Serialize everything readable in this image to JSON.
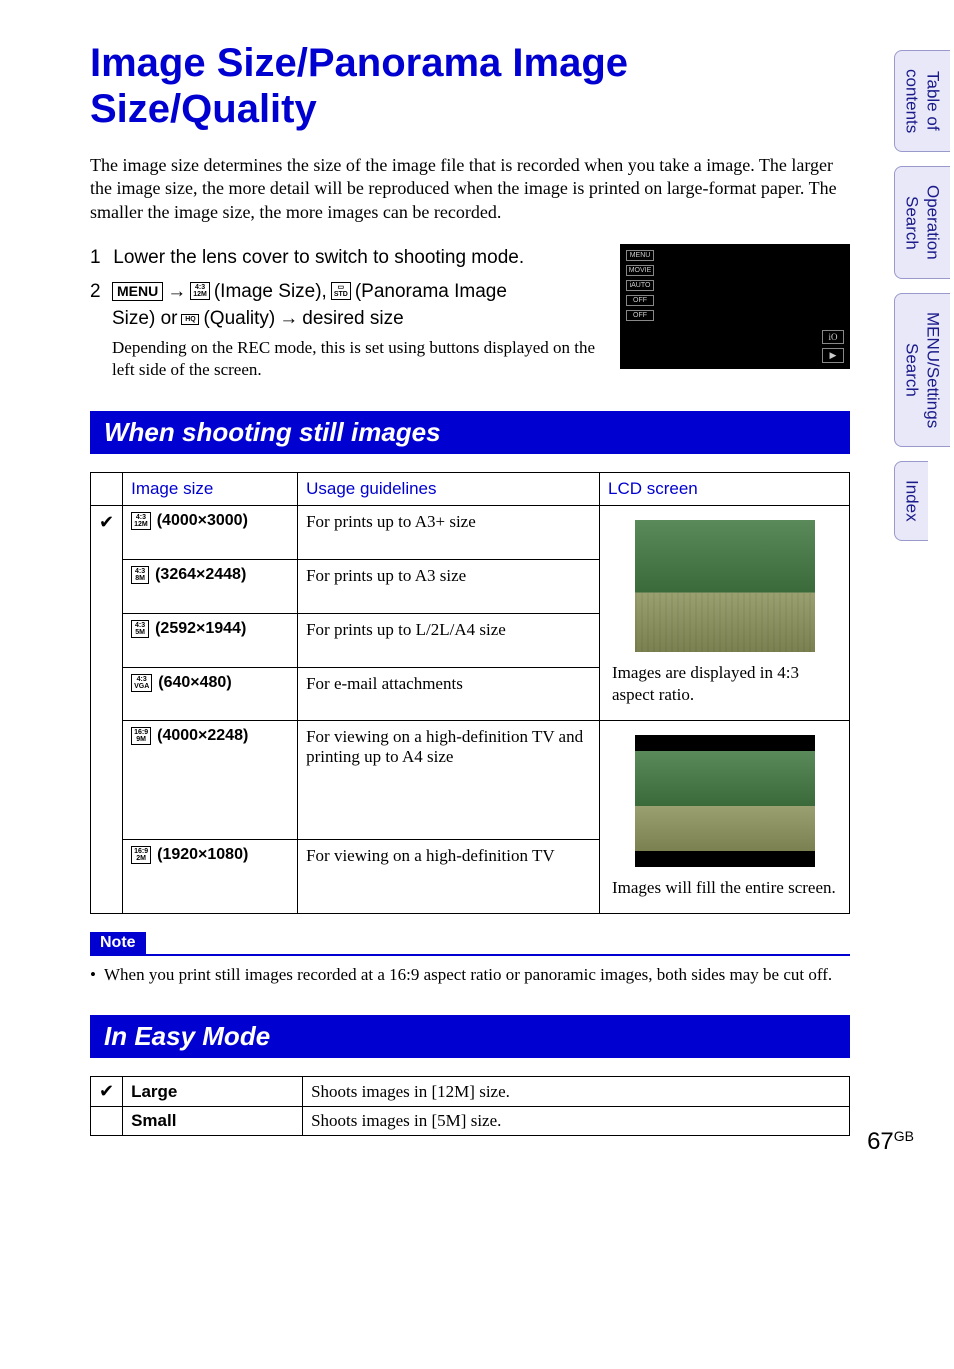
{
  "colors": {
    "heading_blue": "#0000d0",
    "tab_bg": "#e8e8f8",
    "tab_border": "#9999cc",
    "tab_text": "#1a1a8a"
  },
  "sideTabs": [
    {
      "label": "Table of\ncontents"
    },
    {
      "label": "Operation\nSearch"
    },
    {
      "label": "MENU/Settings\nSearch"
    },
    {
      "label": "Index"
    }
  ],
  "title": "Image Size/Panorama Image Size/Quality",
  "intro": "The image size determines the size of the image file that is recorded when you take a image. The larger the image size, the more detail will be reproduced when the image is printed on large-format paper. The smaller the image size, the more images can be recorded.",
  "steps": {
    "s1": "Lower the lens cover to switch to shooting mode.",
    "s2_menu": "MENU",
    "s2_a": "(Image Size),",
    "s2_b": "(Panorama Image",
    "s2_c": "Size) or",
    "s2_d": "(Quality)",
    "s2_e": "desired size",
    "sub": "Depending on the REC mode, this is set using buttons displayed on the left side of the screen.",
    "icon_imgsize_top": "4:3",
    "icon_imgsize_bot": "12M",
    "icon_pano": "STD",
    "icon_quality": "HQ"
  },
  "thumb": {
    "left": [
      "MENU",
      "MOVIE",
      "iAUTO",
      "OFF",
      "OFF"
    ],
    "right": [
      "iO",
      "▶"
    ]
  },
  "section1_title": "When shooting still images",
  "table1": {
    "headers": {
      "size": "Image size",
      "usage": "Usage guidelines",
      "lcd": "LCD screen"
    },
    "rows": [
      {
        "check": "✔",
        "icon_top": "4:3",
        "icon_bot": "12M",
        "res": "(4000×3000)",
        "usage": "For prints up to A3+ size"
      },
      {
        "check": "",
        "icon_top": "4:3",
        "icon_bot": "8M",
        "res": "(3264×2448)",
        "usage": "For prints up to A3 size"
      },
      {
        "check": "",
        "icon_top": "4:3",
        "icon_bot": "5M",
        "res": "(2592×1944)",
        "usage": "For prints up to L/2L/A4 size"
      },
      {
        "check": "",
        "icon_top": "4:3",
        "icon_bot": "VGA",
        "res": "(640×480)",
        "usage": "For e-mail attachments"
      },
      {
        "check": "",
        "icon_top": "16:9",
        "icon_bot": "9M",
        "res": "(4000×2248)",
        "usage": "For viewing on a high-definition TV and printing up to A4 size"
      },
      {
        "check": "",
        "icon_top": "16:9",
        "icon_bot": "2M",
        "res": "(1920×1080)",
        "usage": "For viewing on a high-definition TV"
      }
    ],
    "lcd43_caption": "Images are displayed in 4:3 aspect ratio.",
    "lcd169_caption": "Images will fill the entire screen."
  },
  "note_label": "Note",
  "note_text": "When you print still images recorded at a 16:9 aspect ratio or panoramic images, both sides may be cut off.",
  "section2_title": "In Easy Mode",
  "table2": {
    "rows": [
      {
        "check": "✔",
        "label": "Large",
        "desc": "Shoots images in [12M] size."
      },
      {
        "check": "",
        "label": "Small",
        "desc": "Shoots images in [5M] size."
      }
    ]
  },
  "page": {
    "num": "67",
    "suffix": "GB"
  }
}
